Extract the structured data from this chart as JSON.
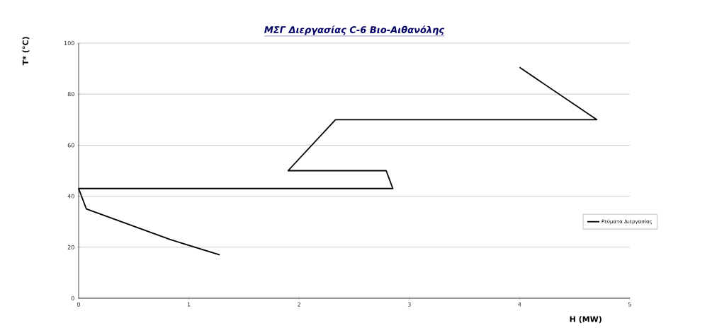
{
  "chart_data": {
    "type": "line",
    "title": "ΜΣΓ Διεργασίας C-6 Βιο-Αιθανόλης",
    "xlabel": "H (MW)",
    "ylabel": "T* (°C)",
    "x": [
      1.28,
      0.83,
      0.07,
      0,
      2.85,
      2.79,
      1.9,
      2.33,
      4.7,
      4.0
    ],
    "series": [
      {
        "name": "Ρεύματα Διεργασίας",
        "color": "#000000",
        "values": [
          17,
          23,
          35,
          43,
          43,
          50,
          50,
          70,
          70,
          90.5
        ]
      }
    ],
    "xlim": [
      0,
      5
    ],
    "ylim": [
      0,
      100
    ],
    "xticks": [
      0,
      1,
      2,
      3,
      4,
      5
    ],
    "yticks": [
      0,
      20,
      40,
      60,
      80,
      100
    ],
    "grid": "y",
    "legend": "right",
    "marker": "none",
    "line_style": "solid"
  }
}
